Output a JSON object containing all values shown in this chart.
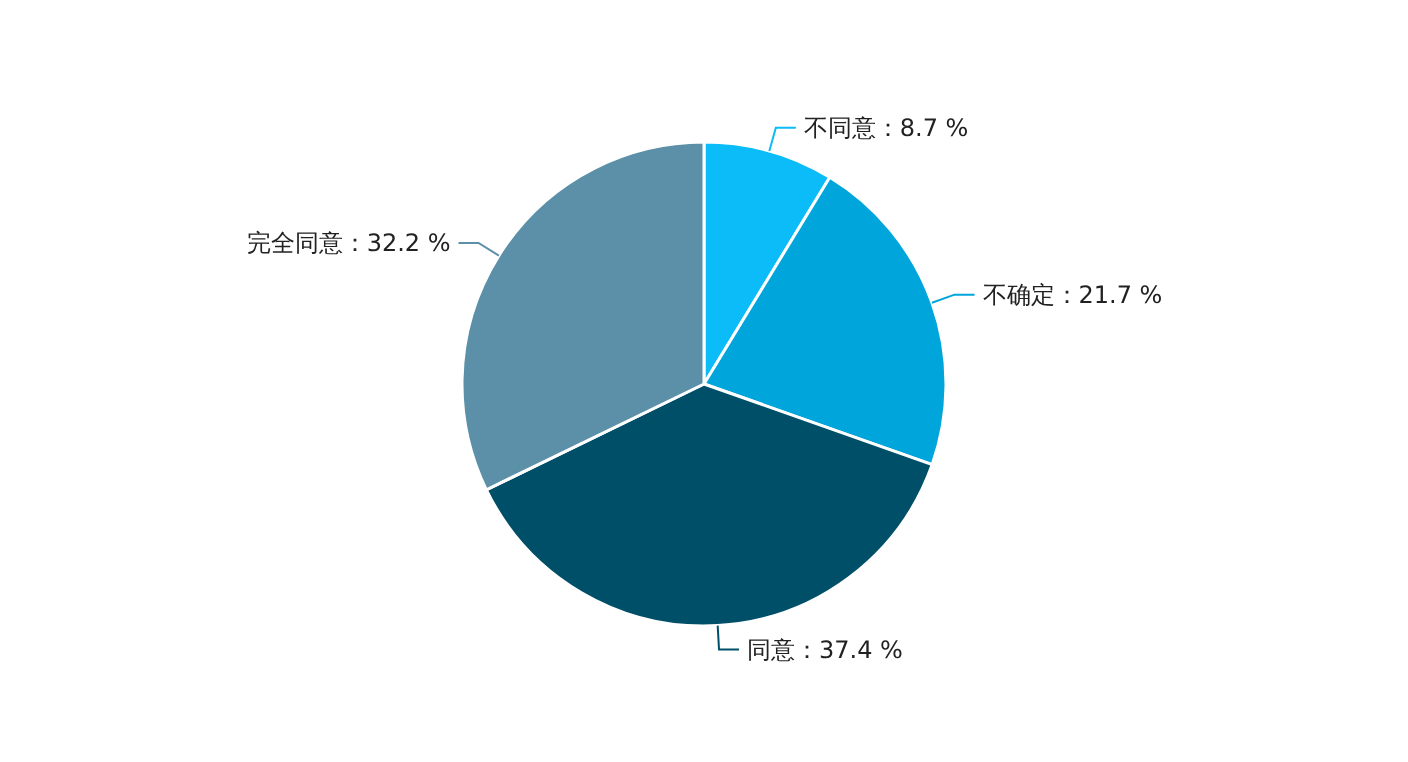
{
  "chart_data": {
    "type": "pie",
    "categories": [
      "不同意",
      "不确定",
      "同意",
      "完全同意"
    ],
    "values": [
      8.7,
      21.7,
      37.4,
      32.2
    ],
    "colors": [
      "#0bbcf9",
      "#00a5db",
      "#004f69",
      "#5b90a8"
    ],
    "value_labels": [
      "：8.7 %",
      "：21.7 %",
      "：37.4 %",
      "：32.2 %"
    ]
  }
}
